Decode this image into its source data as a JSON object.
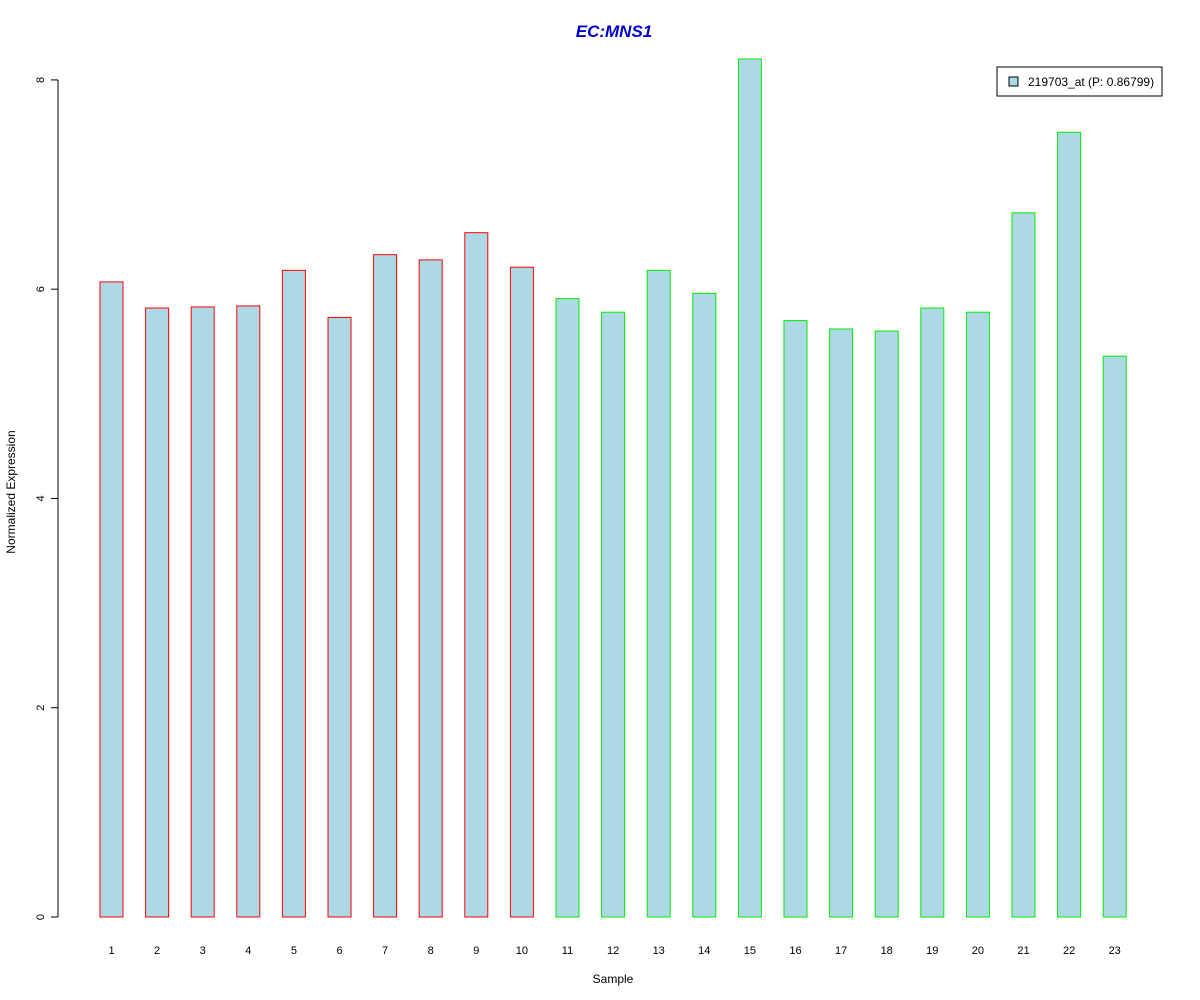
{
  "chart_data": {
    "type": "bar",
    "title": "EC:MNS1",
    "xlabel": "Sample",
    "ylabel": "Normalized Expression",
    "ylim": [
      0,
      8.2
    ],
    "yticks": [
      "0",
      "2",
      "4",
      "6",
      "8"
    ],
    "categories": [
      "1",
      "2",
      "3",
      "4",
      "5",
      "6",
      "7",
      "8",
      "9",
      "10",
      "11",
      "12",
      "13",
      "14",
      "15",
      "16",
      "17",
      "18",
      "19",
      "20",
      "21",
      "22",
      "23"
    ],
    "series": [
      {
        "name": "219703_at (P: 0.86799)",
        "values": [
          6.07,
          5.82,
          5.83,
          5.84,
          6.18,
          5.73,
          6.33,
          6.28,
          6.54,
          6.21,
          5.91,
          5.78,
          6.18,
          5.96,
          8.2,
          5.7,
          5.62,
          5.6,
          5.82,
          5.78,
          6.73,
          7.5,
          5.36
        ]
      }
    ],
    "groups": [
      {
        "samples": [
          1,
          2,
          3,
          4,
          5,
          6,
          7,
          8,
          9,
          10
        ],
        "border_color": "#ff0000"
      },
      {
        "samples": [
          11,
          12,
          13,
          14,
          15,
          16,
          17,
          18,
          19,
          20,
          21,
          22,
          23
        ],
        "border_color": "#00ee00"
      }
    ],
    "bar_fill": "#add8e6",
    "title_color": "#0000cd",
    "legend_position": "top-right",
    "grid": false
  }
}
